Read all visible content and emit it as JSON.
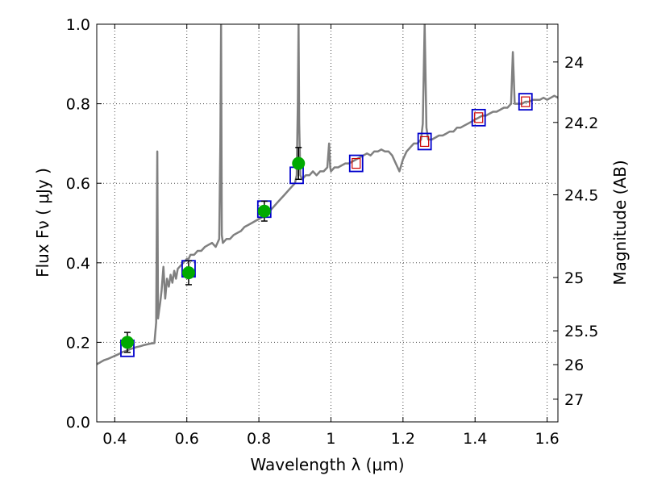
{
  "chart_data": {
    "type": "line",
    "title": "",
    "xlabel": "Wavelength  λ (μm)",
    "ylabel": "Flux  Fν  ( μJy )",
    "y2label": "Magnitude (AB)",
    "xlim": [
      0.35,
      1.63
    ],
    "ylim": [
      0.0,
      1.0
    ],
    "grid": true,
    "x_ticks": [
      0.4,
      0.6,
      0.8,
      1.0,
      1.2,
      1.4,
      1.6
    ],
    "x_tick_labels": [
      "0.4",
      "0.6",
      "0.8",
      "1",
      "1.2",
      "1.4",
      "1.6"
    ],
    "y_ticks": [
      0.0,
      0.2,
      0.4,
      0.6,
      0.8,
      1.0
    ],
    "y_tick_labels": [
      "0.0",
      "0.2",
      "0.4",
      "0.6",
      "0.8",
      "1.0"
    ],
    "mag_ticks": [
      {
        "label": "24",
        "flux": 0.905
      },
      {
        "label": "24.2",
        "flux": 0.753
      },
      {
        "label": "24.5",
        "flux": 0.571
      },
      {
        "label": "25",
        "flux": 0.363
      },
      {
        "label": "25.5",
        "flux": 0.229
      },
      {
        "label": "26",
        "flux": 0.144
      },
      {
        "label": "27",
        "flux": 0.057
      }
    ],
    "colors": {
      "model": "#808080",
      "model_photometry": "#0000cc",
      "model_photometry_inner": "#cc0000",
      "observed": "#00aa00",
      "errorbar": "#000000"
    },
    "series": [
      {
        "type": "line",
        "x": [
          0.35,
          0.36,
          0.37,
          0.38,
          0.39,
          0.4,
          0.41,
          0.42,
          0.43,
          0.44,
          0.45,
          0.46,
          0.47,
          0.48,
          0.49,
          0.5,
          0.51,
          0.515,
          0.518,
          0.52,
          0.523,
          0.526,
          0.53,
          0.535,
          0.54,
          0.545,
          0.55,
          0.555,
          0.56,
          0.565,
          0.57,
          0.575,
          0.58,
          0.59,
          0.6,
          0.605,
          0.61,
          0.62,
          0.63,
          0.64,
          0.65,
          0.66,
          0.67,
          0.68,
          0.69,
          0.693,
          0.695,
          0.697,
          0.7,
          0.71,
          0.72,
          0.73,
          0.74,
          0.75,
          0.76,
          0.77,
          0.78,
          0.79,
          0.8,
          0.81,
          0.82,
          0.83,
          0.84,
          0.85,
          0.86,
          0.87,
          0.88,
          0.89,
          0.9,
          0.905,
          0.908,
          0.91,
          0.912,
          0.915,
          0.92,
          0.93,
          0.94,
          0.95,
          0.96,
          0.97,
          0.98,
          0.99,
          0.995,
          0.998,
          1.0,
          1.01,
          1.02,
          1.03,
          1.04,
          1.05,
          1.06,
          1.07,
          1.08,
          1.09,
          1.1,
          1.11,
          1.12,
          1.13,
          1.14,
          1.15,
          1.16,
          1.17,
          1.18,
          1.19,
          1.2,
          1.21,
          1.22,
          1.23,
          1.24,
          1.25,
          1.255,
          1.26,
          1.265,
          1.27,
          1.28,
          1.29,
          1.3,
          1.31,
          1.32,
          1.33,
          1.34,
          1.35,
          1.36,
          1.37,
          1.38,
          1.39,
          1.4,
          1.41,
          1.42,
          1.43,
          1.44,
          1.45,
          1.46,
          1.47,
          1.48,
          1.49,
          1.5,
          1.505,
          1.51,
          1.52,
          1.53,
          1.54,
          1.55,
          1.56,
          1.57,
          1.58,
          1.59,
          1.6,
          1.61,
          1.62,
          1.63
        ],
        "y": [
          0.145,
          0.15,
          0.155,
          0.158,
          0.162,
          0.166,
          0.17,
          0.175,
          0.178,
          0.182,
          0.185,
          0.188,
          0.19,
          0.193,
          0.195,
          0.197,
          0.198,
          0.25,
          0.68,
          0.26,
          0.28,
          0.3,
          0.33,
          0.39,
          0.31,
          0.36,
          0.34,
          0.37,
          0.35,
          0.38,
          0.36,
          0.385,
          0.39,
          0.4,
          0.41,
          0.41,
          0.42,
          0.42,
          0.43,
          0.43,
          0.44,
          0.445,
          0.45,
          0.44,
          0.46,
          0.7,
          1.0,
          0.47,
          0.45,
          0.46,
          0.46,
          0.47,
          0.475,
          0.48,
          0.49,
          0.495,
          0.5,
          0.505,
          0.51,
          0.515,
          0.52,
          0.53,
          0.54,
          0.55,
          0.56,
          0.57,
          0.58,
          0.59,
          0.6,
          0.62,
          0.8,
          1.0,
          0.75,
          0.62,
          0.61,
          0.62,
          0.62,
          0.63,
          0.62,
          0.63,
          0.63,
          0.64,
          0.7,
          0.64,
          0.63,
          0.64,
          0.64,
          0.645,
          0.65,
          0.65,
          0.655,
          0.66,
          0.665,
          0.67,
          0.675,
          0.67,
          0.68,
          0.68,
          0.685,
          0.68,
          0.68,
          0.67,
          0.65,
          0.63,
          0.66,
          0.68,
          0.69,
          0.7,
          0.7,
          0.71,
          0.75,
          1.0,
          0.74,
          0.71,
          0.71,
          0.715,
          0.72,
          0.72,
          0.725,
          0.73,
          0.73,
          0.74,
          0.74,
          0.745,
          0.75,
          0.755,
          0.76,
          0.765,
          0.77,
          0.77,
          0.775,
          0.78,
          0.78,
          0.785,
          0.79,
          0.79,
          0.8,
          0.93,
          0.8,
          0.8,
          0.8,
          0.805,
          0.805,
          0.81,
          0.81,
          0.81,
          0.815,
          0.81,
          0.815,
          0.82,
          0.815
        ]
      },
      {
        "type": "scatter",
        "marker": "square",
        "x": [
          0.435,
          0.605,
          0.815,
          0.905,
          1.07,
          1.26,
          1.41,
          1.54
        ],
        "y": [
          0.185,
          0.385,
          0.535,
          0.62,
          0.65,
          0.705,
          0.765,
          0.805
        ]
      },
      {
        "type": "scatter",
        "marker": "circle",
        "x": [
          0.435,
          0.605,
          0.815,
          0.91
        ],
        "y": [
          0.2,
          0.375,
          0.53,
          0.65
        ],
        "yerr": [
          0.025,
          0.03,
          0.025,
          0.04
        ]
      }
    ]
  }
}
